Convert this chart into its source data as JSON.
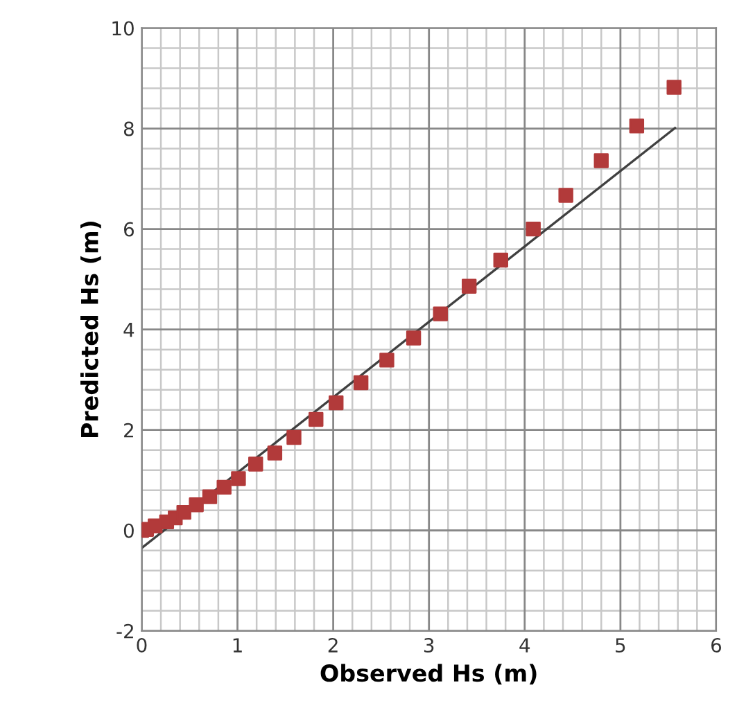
{
  "chart_data": {
    "type": "scatter",
    "xlabel": "Observed Hs (m)",
    "ylabel": "Predicted Hs (m)",
    "xlim": [
      0,
      6
    ],
    "ylim": [
      -2,
      10
    ],
    "xticks": [
      0,
      1,
      2,
      3,
      4,
      5,
      6
    ],
    "yticks": [
      -2,
      0,
      2,
      4,
      6,
      8,
      10
    ],
    "grid": true,
    "series": [
      {
        "marker": "square",
        "color": "#b23a3a",
        "x": [
          0.0,
          0.05,
          0.14,
          0.26,
          0.35,
          0.44,
          0.57,
          0.71,
          0.86,
          1.01,
          1.19,
          1.39,
          1.59,
          1.82,
          2.03,
          2.29,
          2.56,
          2.84,
          3.12,
          3.42,
          3.75,
          4.09,
          4.43,
          4.8,
          5.17,
          5.56
        ],
        "values": [
          0.0,
          0.02,
          0.09,
          0.17,
          0.25,
          0.36,
          0.51,
          0.67,
          0.86,
          1.03,
          1.32,
          1.54,
          1.85,
          2.21,
          2.54,
          2.94,
          3.39,
          3.83,
          4.31,
          4.86,
          5.38,
          6.0,
          6.67,
          7.36,
          8.05,
          8.82
        ]
      },
      {
        "type": "line",
        "marker": "none",
        "color": "#404040",
        "x": [
          0.0,
          5.57
        ],
        "values": [
          -0.35,
          8.01
        ]
      }
    ]
  }
}
